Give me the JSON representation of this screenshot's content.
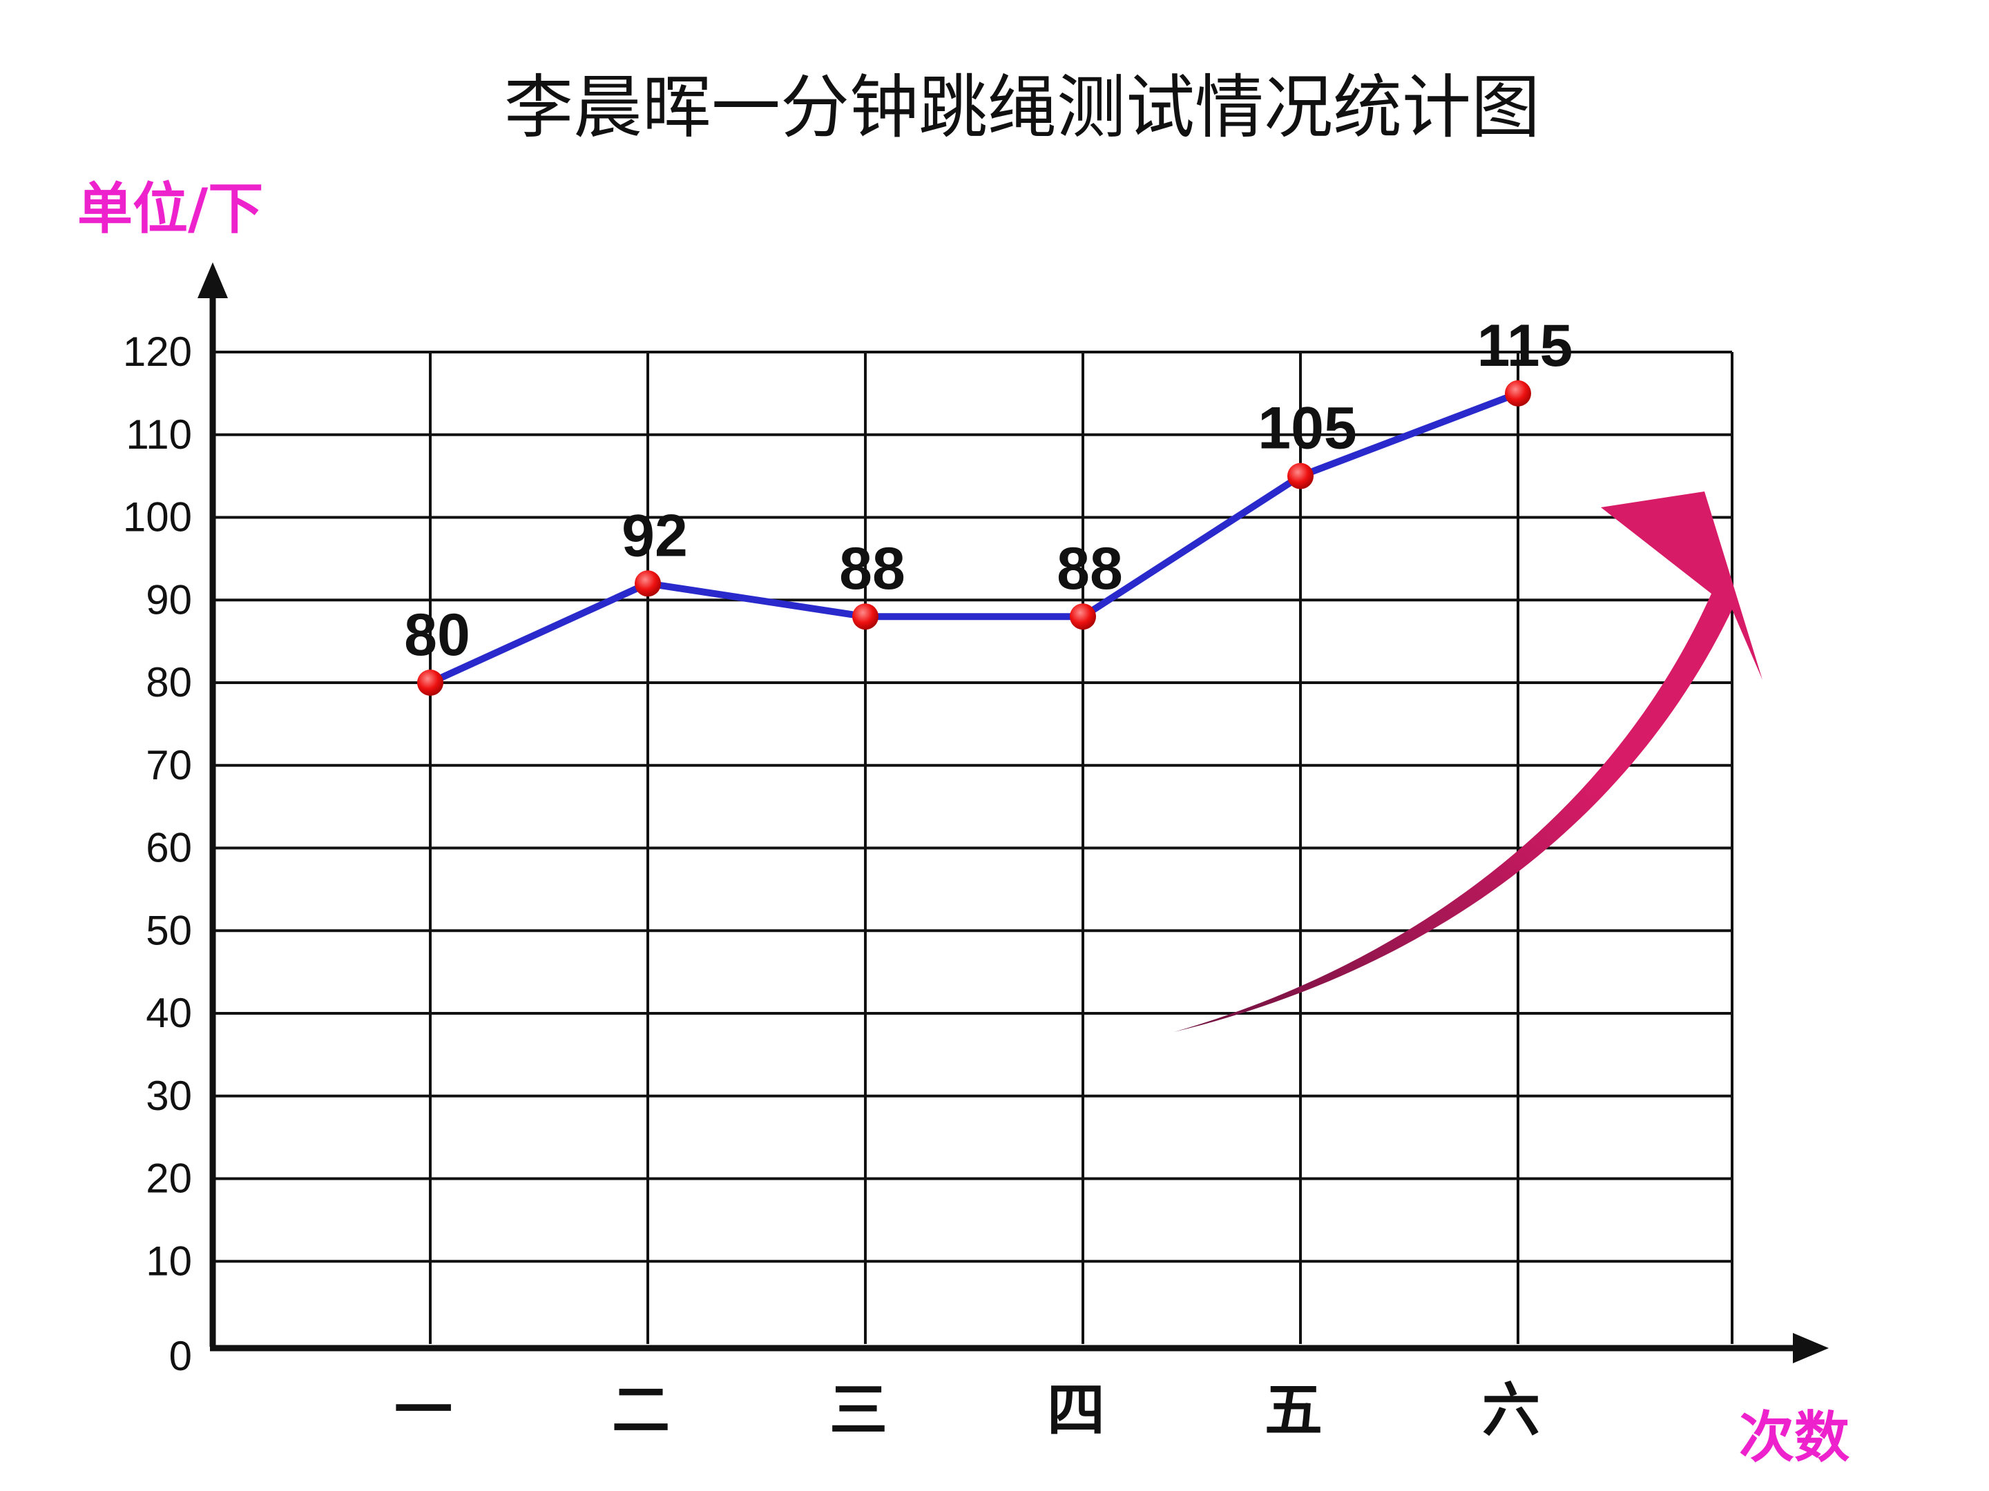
{
  "colors": {
    "line": "#2a2acc",
    "point": "#ee1111",
    "grid": "#111111",
    "unit_label": "#ee22cc",
    "arrow_light": "#d81b66",
    "arrow_dark": "#6e1240"
  },
  "chart_data": {
    "type": "line",
    "title": "李晨晖一分钟跳绳测试情况统计图",
    "ylabel": "单位/下",
    "xlabel": "次数",
    "categories": [
      "一",
      "二",
      "三",
      "四",
      "五",
      "六"
    ],
    "values": [
      80,
      92,
      88,
      88,
      105,
      115
    ],
    "value_labels": [
      "80",
      "92",
      "88",
      "88",
      "105",
      "115"
    ],
    "yticks": [
      "0",
      "10",
      "20",
      "30",
      "40",
      "50",
      "60",
      "70",
      "80",
      "90",
      "100",
      "110",
      "120"
    ],
    "ylim": [
      0,
      120
    ],
    "grid": true,
    "decoration": "upward-trend-arrow"
  }
}
